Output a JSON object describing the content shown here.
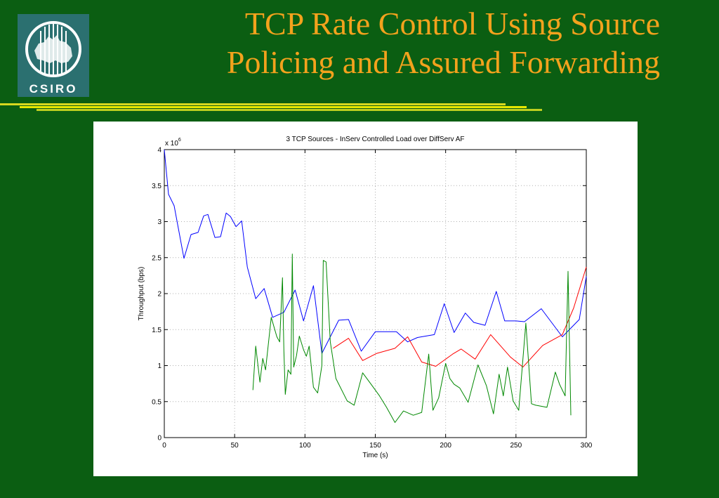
{
  "slide": {
    "title_line1": "TCP Rate Control Using Source",
    "title_line2": "Policing and Assured Forwarding",
    "logo_text": "CSIRO",
    "colors": {
      "background": "#0b5e12",
      "title": "#f3a21d",
      "rule": "#e6e600",
      "logo": "#2b7070"
    }
  },
  "chart_data": {
    "type": "line",
    "title": "3 TCP Sources - InServ Controlled Load over DiffServ AF",
    "xlabel": "Time (s)",
    "ylabel": "Throughput (bps)",
    "y_multiplier": "x 10^6",
    "xlim": [
      0,
      300
    ],
    "ylim": [
      0,
      4
    ],
    "xticks": [
      0,
      50,
      100,
      150,
      200,
      250,
      300
    ],
    "yticks": [
      0,
      0.5,
      1,
      1.5,
      2,
      2.5,
      3,
      3.5,
      4
    ],
    "grid": true,
    "series": [
      {
        "color": "#0000ff",
        "x": [
          0,
          3,
          7,
          14,
          19,
          24,
          28,
          31,
          36,
          40,
          44,
          47,
          51,
          55,
          59,
          65,
          71,
          77,
          85,
          93,
          99,
          106,
          112,
          124,
          131,
          140,
          150,
          165,
          173,
          180,
          192,
          199,
          206,
          214,
          220,
          228,
          236,
          242,
          250,
          256,
          268,
          283,
          295,
          300
        ],
        "y": [
          4.0,
          3.38,
          3.22,
          2.49,
          2.82,
          2.85,
          3.08,
          3.1,
          2.78,
          2.79,
          3.12,
          3.07,
          2.93,
          3.01,
          2.37,
          1.93,
          2.07,
          1.67,
          1.74,
          2.05,
          1.62,
          2.11,
          1.17,
          1.63,
          1.64,
          1.2,
          1.47,
          1.47,
          1.33,
          1.39,
          1.43,
          1.86,
          1.46,
          1.73,
          1.6,
          1.56,
          2.03,
          1.62,
          1.62,
          1.61,
          1.79,
          1.4,
          1.64,
          2.24
        ]
      },
      {
        "color": "#ff0000",
        "x": [
          120,
          131,
          141,
          151,
          164,
          173,
          183,
          193,
          205,
          211,
          221,
          232,
          246,
          255,
          269,
          283,
          291,
          300
        ],
        "y": [
          1.24,
          1.38,
          1.07,
          1.17,
          1.24,
          1.4,
          1.05,
          0.99,
          1.16,
          1.23,
          1.09,
          1.43,
          1.12,
          0.98,
          1.28,
          1.43,
          1.8,
          2.37
        ]
      },
      {
        "color": "#008800",
        "x": [
          63,
          65,
          68,
          70,
          72,
          76,
          80,
          82,
          84,
          85,
          86,
          88,
          90,
          91,
          92,
          94,
          96,
          99,
          101,
          103,
          106,
          109,
          112,
          113,
          115,
          118,
          122,
          130,
          135,
          141,
          147,
          153,
          158,
          164,
          170,
          177,
          183,
          188,
          191,
          195,
          200,
          203,
          206,
          210,
          216,
          223,
          229,
          234,
          238,
          241,
          244,
          248,
          252,
          257,
          261,
          264,
          272,
          278,
          281,
          285,
          287,
          289
        ],
        "y": [
          0.66,
          1.27,
          0.77,
          1.1,
          0.94,
          1.67,
          1.4,
          1.33,
          2.22,
          1.21,
          0.6,
          0.94,
          0.88,
          2.55,
          0.98,
          1.14,
          1.41,
          1.22,
          1.13,
          1.27,
          0.7,
          0.62,
          1.0,
          2.46,
          2.44,
          1.33,
          0.82,
          0.51,
          0.45,
          0.9,
          0.74,
          0.58,
          0.42,
          0.21,
          0.37,
          0.31,
          0.35,
          1.16,
          0.38,
          0.55,
          1.03,
          0.82,
          0.74,
          0.69,
          0.49,
          1.01,
          0.72,
          0.33,
          0.88,
          0.58,
          0.98,
          0.51,
          0.38,
          1.59,
          0.47,
          0.45,
          0.42,
          0.91,
          0.74,
          0.58,
          2.31,
          0.31
        ]
      }
    ]
  }
}
